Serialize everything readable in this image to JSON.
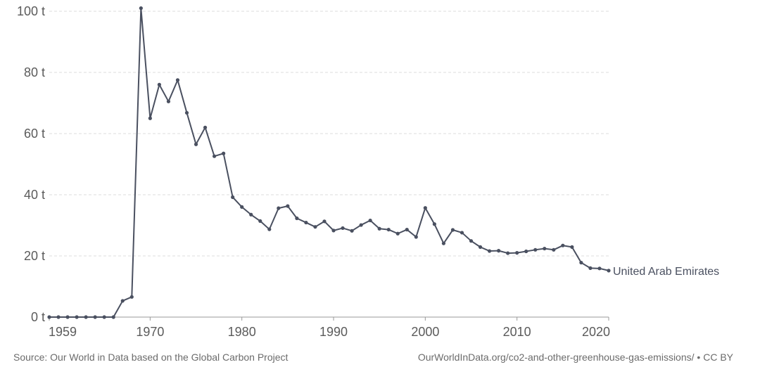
{
  "chart_data": {
    "type": "line",
    "title": "",
    "xlabel": "",
    "ylabel": "",
    "xlim": [
      1959,
      2020
    ],
    "ylim": [
      0,
      100
    ],
    "x_ticks": [
      1959,
      1970,
      1980,
      1990,
      2000,
      2010,
      2020
    ],
    "y_ticks": [
      0,
      20,
      40,
      60,
      80,
      100
    ],
    "y_tick_labels": [
      "0 t",
      "20 t",
      "40 t",
      "60 t",
      "80 t",
      "100 t"
    ],
    "grid": "horizontal dashed",
    "line_color": "#4a5060",
    "series": [
      {
        "name": "United Arab Emirates",
        "x": [
          1959,
          1960,
          1961,
          1962,
          1963,
          1964,
          1965,
          1966,
          1967,
          1968,
          1969,
          1970,
          1971,
          1972,
          1973,
          1974,
          1975,
          1976,
          1977,
          1978,
          1979,
          1980,
          1981,
          1982,
          1983,
          1984,
          1985,
          1986,
          1987,
          1988,
          1989,
          1990,
          1991,
          1992,
          1993,
          1994,
          1995,
          1996,
          1997,
          1998,
          1999,
          2000,
          2001,
          2002,
          2003,
          2004,
          2005,
          2006,
          2007,
          2008,
          2009,
          2010,
          2011,
          2012,
          2013,
          2014,
          2015,
          2016,
          2017,
          2018,
          2019,
          2020
        ],
        "values": [
          0,
          0,
          0,
          0,
          0,
          0,
          0,
          0,
          5.3,
          6.6,
          101,
          65,
          76,
          70.5,
          77.5,
          66.8,
          56.5,
          62,
          52.6,
          53.5,
          39.2,
          36,
          33.5,
          31.4,
          28.7,
          35.6,
          36.3,
          32.3,
          30.9,
          29.5,
          31.3,
          28.3,
          29.1,
          28.2,
          30.1,
          31.6,
          28.9,
          28.6,
          27.3,
          28.6,
          26.2,
          35.7,
          30.4,
          24.1,
          28.5,
          27.6,
          24.9,
          22.9,
          21.6,
          21.7,
          20.9,
          21,
          21.5,
          22,
          22.4,
          22,
          23.4,
          22.9,
          17.8,
          16,
          15.9,
          15.2
        ]
      }
    ]
  },
  "footer": {
    "source": "Source: Our World in Data based on the Global Carbon Project",
    "url": "OurWorldInData.org/co2-and-other-greenhouse-gas-emissions/ • CC BY"
  }
}
